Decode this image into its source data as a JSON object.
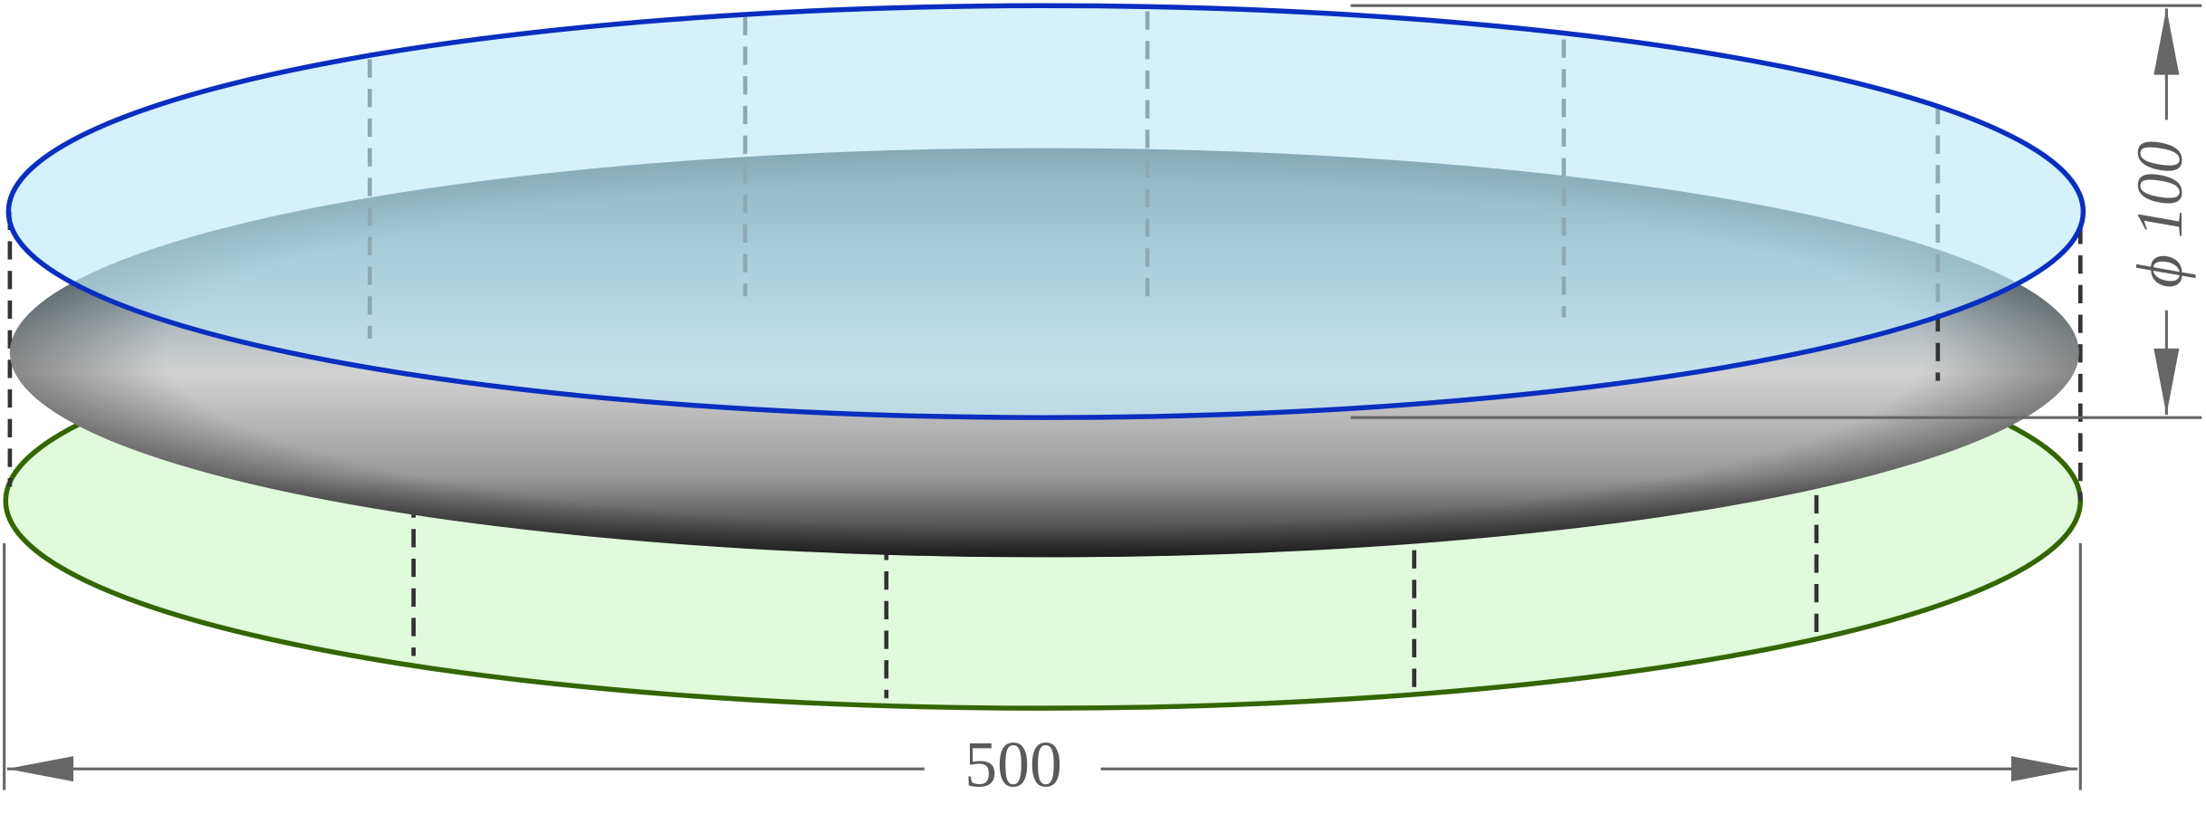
{
  "dimensions": {
    "width": "500",
    "diameter": "ϕ 100"
  }
}
